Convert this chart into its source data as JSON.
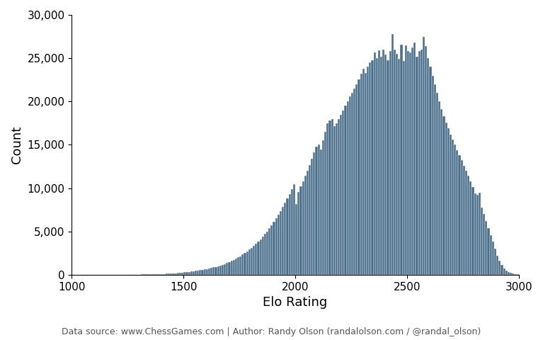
{
  "title": "",
  "xlabel": "Elo Rating",
  "ylabel": "Count",
  "xlim": [
    1000,
    3000
  ],
  "ylim": [
    0,
    30000
  ],
  "xticks": [
    1000,
    1500,
    2000,
    2500,
    3000
  ],
  "yticks": [
    0,
    5000,
    10000,
    15000,
    20000,
    25000,
    30000
  ],
  "bin_width": 10,
  "bar_color": "#4a6f8a",
  "bar_edge_color": "#ffffff",
  "bar_edge_width": 0.3,
  "footnote": "Data source: www.ChessGames.com | Author: Randy Olson (randalolson.com / @randal_olson)",
  "footnote_fontsize": 9,
  "axis_label_fontsize": 13,
  "tick_fontsize": 11,
  "background_color": "#ffffff",
  "hist_counts": [
    5,
    3,
    4,
    2,
    3,
    2,
    3,
    2,
    4,
    3,
    5,
    4,
    5,
    4,
    5,
    6,
    8,
    7,
    9,
    10,
    12,
    13,
    15,
    14,
    16,
    18,
    20,
    22,
    25,
    28,
    32,
    35,
    38,
    42,
    48,
    55,
    62,
    70,
    78,
    88,
    100,
    112,
    125,
    140,
    155,
    170,
    190,
    210,
    230,
    255,
    280,
    310,
    340,
    375,
    410,
    450,
    490,
    535,
    580,
    630,
    680,
    735,
    795,
    860,
    930,
    1005,
    1085,
    1170,
    1260,
    1360,
    1470,
    1590,
    1715,
    1850,
    2000,
    2160,
    2330,
    2510,
    2700,
    2900,
    3110,
    3340,
    3580,
    3840,
    4110,
    4400,
    4700,
    5020,
    5360,
    5720,
    6100,
    6500,
    6920,
    7360,
    7820,
    8300,
    8800,
    9330,
    9880,
    10450,
    8200,
    9600,
    10200,
    10800,
    11400,
    12000,
    12700,
    13400,
    14100,
    14800,
    15000,
    14500,
    15500,
    16500,
    17500,
    17800,
    18000,
    17200,
    17500,
    18000,
    18500,
    19000,
    19500,
    20000,
    20600,
    21000,
    21500,
    22000,
    22600,
    23200,
    23800,
    23300,
    24000,
    24500,
    24800,
    25700,
    25000,
    25900,
    25200,
    26000,
    25400,
    24800,
    25800,
    27800,
    26000,
    25500,
    24900,
    26600,
    24700,
    26500,
    25800,
    25700,
    26200,
    26800,
    25200,
    25800,
    26000,
    27500,
    26400,
    25000,
    24000,
    23000,
    22000,
    21000,
    20000,
    19100,
    18300,
    17600,
    16900,
    16200,
    15600,
    15000,
    14400,
    13800,
    13200,
    12600,
    12000,
    11400,
    10800,
    10100,
    9400,
    9200,
    9500,
    7800,
    7000,
    6200,
    5400,
    4600,
    3800,
    3000,
    2200,
    1600,
    1100,
    700,
    450,
    300,
    200,
    130,
    90,
    60
  ]
}
